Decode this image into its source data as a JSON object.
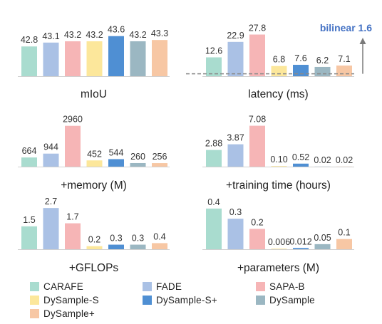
{
  "series_colors": {
    "CARAFE": "#a9dccf",
    "FADE": "#aac1e5",
    "SAPA-B": "#f6b5b6",
    "DySample-S": "#fce79b",
    "DySample-S+": "#4f8fd3",
    "DySample": "#9bb7c2",
    "DySample+": "#f7c7a4"
  },
  "legend": {
    "entries": [
      "CARAFE",
      "FADE",
      "SAPA-B",
      "DySample-S",
      "DySample-S+",
      "DySample",
      "DySample+"
    ]
  },
  "chart_data": [
    {
      "type": "bar",
      "xlabel": "mIoU",
      "categories": [
        "CARAFE",
        "FADE",
        "SAPA-B",
        "DySample-S",
        "DySample-S+",
        "DySample",
        "DySample+"
      ],
      "values": [
        42.8,
        43.1,
        43.2,
        43.2,
        43.6,
        43.2,
        43.3
      ],
      "labels": [
        "42.8",
        "43.1",
        "43.2",
        "43.2",
        "43.6",
        "43.2",
        "43.3"
      ],
      "ylim": [
        40.5,
        44.3
      ]
    },
    {
      "type": "bar",
      "xlabel": "latency (ms)",
      "categories": [
        "CARAFE",
        "FADE",
        "SAPA-B",
        "DySample-S",
        "DySample-S+",
        "DySample",
        "DySample+"
      ],
      "values": [
        12.6,
        22.9,
        27.8,
        6.8,
        7.6,
        6.2,
        7.1
      ],
      "labels": [
        "12.6",
        "22.9",
        "27.8",
        "6.8",
        "7.6",
        "6.2",
        "7.1"
      ],
      "ylim": [
        0,
        29
      ],
      "reference_line": {
        "label": "bilinear 1.6",
        "value": 1.6
      }
    },
    {
      "type": "bar",
      "xlabel": "+memory (M)",
      "categories": [
        "CARAFE",
        "FADE",
        "SAPA-B",
        "DySample-S",
        "DySample-S+",
        "DySample",
        "DySample+"
      ],
      "values": [
        664,
        944,
        2960,
        452,
        544,
        260,
        256
      ],
      "labels": [
        "664",
        "944",
        "2960",
        "452",
        "544",
        "260",
        "256"
      ],
      "ylim": [
        0,
        3100
      ]
    },
    {
      "type": "bar",
      "xlabel": "+training time (hours)",
      "categories": [
        "CARAFE",
        "FADE",
        "SAPA-B",
        "DySample-S",
        "DySample-S+",
        "DySample",
        "DySample+"
      ],
      "values": [
        2.88,
        3.87,
        7.08,
        0.1,
        0.52,
        0.02,
        0.02
      ],
      "labels": [
        "2.88",
        "3.87",
        "7.08",
        "0.10",
        "0.52",
        "0.02",
        "0.02"
      ],
      "ylim": [
        0,
        7.4
      ]
    },
    {
      "type": "bar",
      "xlabel": "+GFLOPs",
      "categories": [
        "CARAFE",
        "FADE",
        "SAPA-B",
        "DySample-S",
        "DySample-S+",
        "DySample",
        "DySample+"
      ],
      "values": [
        1.5,
        2.7,
        1.7,
        0.2,
        0.3,
        0.3,
        0.4
      ],
      "labels": [
        "1.5",
        "2.7",
        "1.7",
        "0.2",
        "0.3",
        "0.3",
        "0.4"
      ],
      "ylim": [
        0,
        2.8
      ]
    },
    {
      "type": "bar",
      "xlabel": "+parameters (M)",
      "categories": [
        "CARAFE",
        "FADE",
        "SAPA-B",
        "DySample-S",
        "DySample-S+",
        "DySample",
        "DySample+"
      ],
      "values": [
        0.4,
        0.3,
        0.2,
        0.006,
        0.012,
        0.05,
        0.1
      ],
      "labels": [
        "0.4",
        "0.3",
        "0.2",
        "0.006",
        "0.012",
        "0.05",
        "0.1"
      ],
      "ylim": [
        0,
        0.42
      ]
    }
  ]
}
